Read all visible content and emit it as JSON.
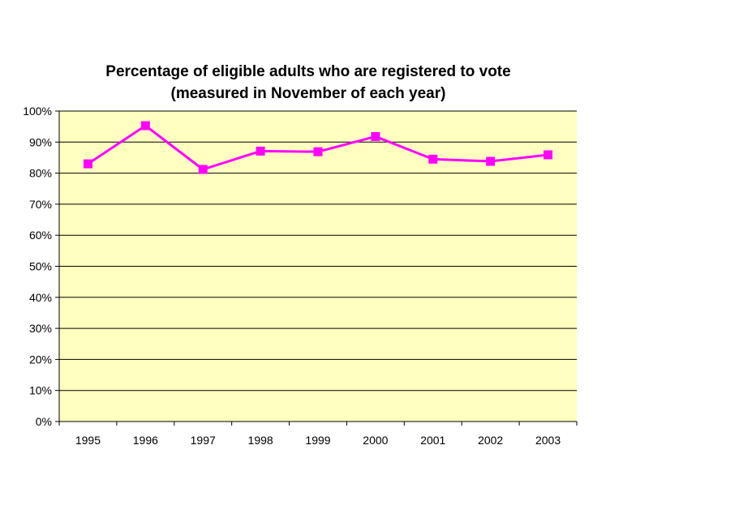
{
  "chart_data": {
    "type": "line",
    "title": [
      "Percentage of eligible adults who are registered to vote",
      "(measured in November of each year)"
    ],
    "xlabel": "",
    "ylabel": "",
    "categories": [
      "1995",
      "1996",
      "1997",
      "1998",
      "1999",
      "2000",
      "2001",
      "2002",
      "2003"
    ],
    "series": [
      {
        "values": [
          83,
          95.3,
          81.2,
          87.1,
          86.9,
          91.8,
          84.5,
          83.8,
          85.9
        ]
      }
    ],
    "ylim": [
      0,
      100
    ],
    "yticks": [
      "0%",
      "10%",
      "20%",
      "30%",
      "40%",
      "50%",
      "60%",
      "70%",
      "80%",
      "90%",
      "100%"
    ],
    "grid": true,
    "legend": "none",
    "colors": {
      "plot_background": "#FFFFC0",
      "series": "#FF00FF",
      "grid": "#000000"
    }
  }
}
